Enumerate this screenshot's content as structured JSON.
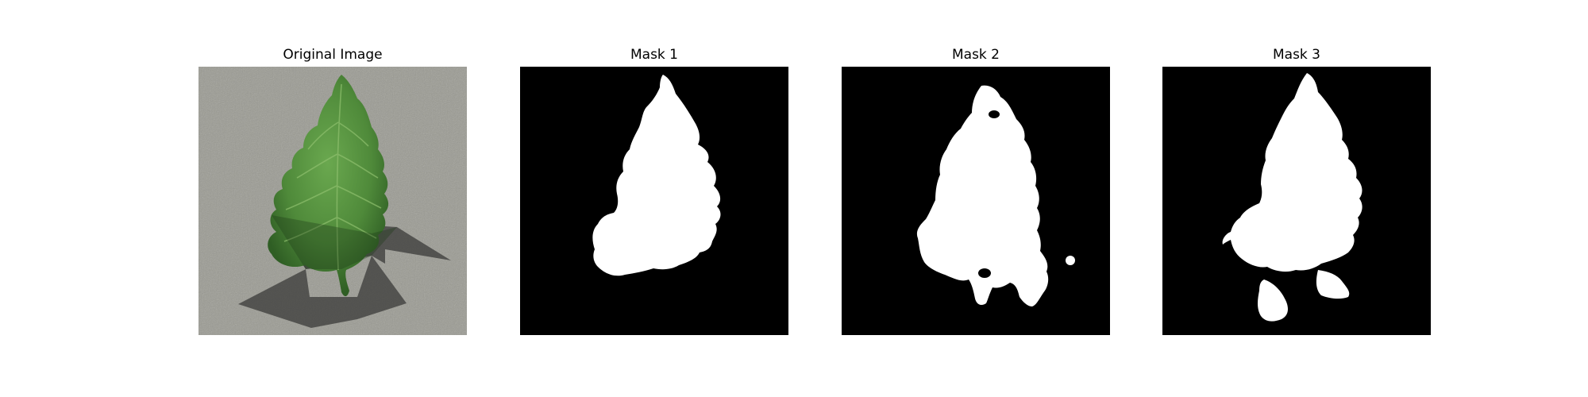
{
  "figure": {
    "panels": [
      {
        "title": "Original Image",
        "content": "leaf-photo"
      },
      {
        "title": "Mask 1",
        "content": "binary-mask"
      },
      {
        "title": "Mask 2",
        "content": "binary-mask"
      },
      {
        "title": "Mask 3",
        "content": "binary-mask"
      }
    ]
  },
  "colors": {
    "background": "#ffffff",
    "mask_fg": "#ffffff",
    "mask_bg": "#000000",
    "leaf_green": "#4f8a3a",
    "ground": "#9a9a92",
    "shadow": "#3a3a38"
  }
}
